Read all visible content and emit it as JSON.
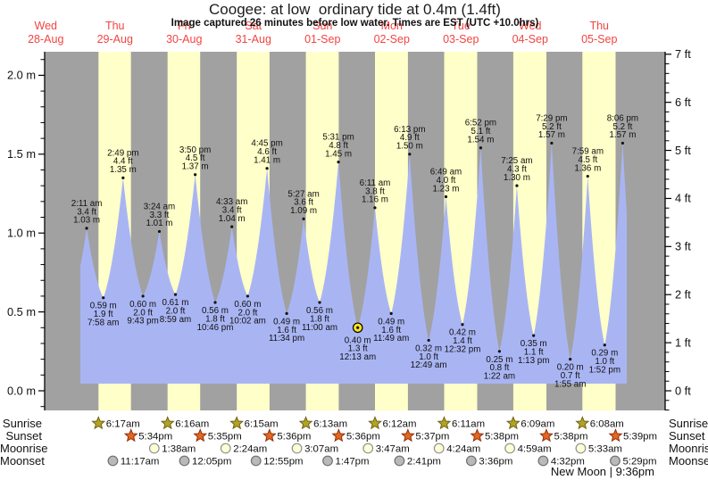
{
  "header": {
    "title": "Coogee: at low  ordinary tide at 0.4m (1.4ft)",
    "subtitle": "Image captured 26 minutes before low water. Times are EST (UTC +10.0hrs)"
  },
  "chart_data": {
    "type": "area",
    "title": "Coogee: at low  ordinary tide at 0.4m (1.4ft)",
    "ylim_m": [
      0.0,
      2.0
    ],
    "ylim_ft": [
      0,
      7
    ],
    "grid": false,
    "days": [
      {
        "name": "Wed",
        "date": "28-Aug"
      },
      {
        "name": "Thu",
        "date": "29-Aug"
      },
      {
        "name": "Fri",
        "date": "30-Aug"
      },
      {
        "name": "Sat",
        "date": "31-Aug"
      },
      {
        "name": "Sun",
        "date": "01-Sep"
      },
      {
        "name": "Mon",
        "date": "02-Sep"
      },
      {
        "name": "Tue",
        "date": "03-Sep"
      },
      {
        "name": "Wed",
        "date": "04-Sep"
      },
      {
        "name": "Thu",
        "date": "05-Sep"
      }
    ],
    "y_axis_left": {
      "unit": "m",
      "values": [
        2.0,
        1.5,
        1.0,
        0.5,
        0.0
      ],
      "labels": [
        "2.0 m",
        "1.5 m",
        "1.0 m",
        "0.5 m",
        "0.0 m"
      ]
    },
    "y_axis_right": {
      "unit": "ft",
      "values": [
        7,
        6,
        5,
        4,
        3,
        2,
        1,
        0
      ],
      "labels": [
        "7 ft",
        "6 ft",
        "5 ft",
        "4 ft",
        "3 ft",
        "2 ft",
        "1 ft",
        "0 ft"
      ]
    },
    "tide_events": [
      {
        "day": 1,
        "type": "high",
        "time": "2:11 am",
        "ft": "3.4 ft",
        "m": "1.03 m"
      },
      {
        "day": 1,
        "type": "low",
        "time": "7:58 am",
        "ft": "1.9 ft",
        "m": "0.59 m"
      },
      {
        "day": 1,
        "type": "high",
        "time": "2:49 pm",
        "ft": "4.4 ft",
        "m": "1.35 m"
      },
      {
        "day": 1,
        "type": "low",
        "time": "9:43 pm",
        "ft": "2.0 ft",
        "m": "0.60 m"
      },
      {
        "day": 2,
        "type": "high",
        "time": "3:24 am",
        "ft": "3.3 ft",
        "m": "1.01 m"
      },
      {
        "day": 2,
        "type": "low",
        "time": "8:59 am",
        "ft": "2.0 ft",
        "m": "0.61 m"
      },
      {
        "day": 2,
        "type": "high",
        "time": "3:50 pm",
        "ft": "4.5 ft",
        "m": "1.37 m"
      },
      {
        "day": 2,
        "type": "low",
        "time": "10:46 pm",
        "ft": "1.8 ft",
        "m": "0.56 m"
      },
      {
        "day": 3,
        "type": "high",
        "time": "4:33 am",
        "ft": "3.4 ft",
        "m": "1.04 m"
      },
      {
        "day": 3,
        "type": "low",
        "time": "10:02 am",
        "ft": "2.0 ft",
        "m": "0.60 m"
      },
      {
        "day": 3,
        "type": "high",
        "time": "4:45 pm",
        "ft": "4.6 ft",
        "m": "1.41 m"
      },
      {
        "day": 3,
        "type": "low",
        "time": "11:34 pm",
        "ft": "1.6 ft",
        "m": "0.49 m"
      },
      {
        "day": 4,
        "type": "high",
        "time": "5:27 am",
        "ft": "3.6 ft",
        "m": "1.09 m"
      },
      {
        "day": 4,
        "type": "low",
        "time": "11:00 am",
        "ft": "1.8 ft",
        "m": "0.56 m"
      },
      {
        "day": 4,
        "type": "high",
        "time": "5:31 pm",
        "ft": "4.8 ft",
        "m": "1.45 m"
      },
      {
        "day": 5,
        "type": "low",
        "time": "12:13 am",
        "ft": "1.3 ft",
        "m": "0.40 m",
        "current": true
      },
      {
        "day": 5,
        "type": "high",
        "time": "6:11 am",
        "ft": "3.8 ft",
        "m": "1.16 m"
      },
      {
        "day": 5,
        "type": "low",
        "time": "11:49 am",
        "ft": "1.6 ft",
        "m": "0.49 m"
      },
      {
        "day": 5,
        "type": "high",
        "time": "6:13 pm",
        "ft": "4.9 ft",
        "m": "1.50 m"
      },
      {
        "day": 6,
        "type": "low",
        "time": "12:49 am",
        "ft": "1.0 ft",
        "m": "0.32 m"
      },
      {
        "day": 6,
        "type": "high",
        "time": "6:49 am",
        "ft": "4.0 ft",
        "m": "1.23 m"
      },
      {
        "day": 6,
        "type": "low",
        "time": "12:32 pm",
        "ft": "1.4 ft",
        "m": "0.42 m"
      },
      {
        "day": 6,
        "type": "high",
        "time": "6:52 pm",
        "ft": "5.1 ft",
        "m": "1.54 m"
      },
      {
        "day": 7,
        "type": "low",
        "time": "1:22 am",
        "ft": "0.8 ft",
        "m": "0.25 m"
      },
      {
        "day": 7,
        "type": "high",
        "time": "7:25 am",
        "ft": "4.3 ft",
        "m": "1.30 m"
      },
      {
        "day": 7,
        "type": "low",
        "time": "1:13 pm",
        "ft": "1.1 ft",
        "m": "0.35 m"
      },
      {
        "day": 7,
        "type": "high",
        "time": "7:29 pm",
        "ft": "5.2 ft",
        "m": "1.57 m"
      },
      {
        "day": 8,
        "type": "low",
        "time": "1:55 am",
        "ft": "0.7 ft",
        "m": "0.20 m"
      },
      {
        "day": 8,
        "type": "high",
        "time": "7:59 am",
        "ft": "4.5 ft",
        "m": "1.36 m"
      },
      {
        "day": 8,
        "type": "low",
        "time": "1:52 pm",
        "ft": "1.0 ft",
        "m": "0.29 m"
      },
      {
        "day": 8,
        "type": "high",
        "time": "8:06 pm",
        "ft": "5.2 ft",
        "m": "1.57 m"
      }
    ],
    "sun_moon": {
      "rows": [
        {
          "label": "Sunrise",
          "marker": "sunrise-star",
          "events": [
            {
              "day": 1,
              "time": "6:17am"
            },
            {
              "day": 2,
              "time": "6:16am"
            },
            {
              "day": 3,
              "time": "6:15am"
            },
            {
              "day": 4,
              "time": "6:13am"
            },
            {
              "day": 5,
              "time": "6:12am"
            },
            {
              "day": 6,
              "time": "6:11am"
            },
            {
              "day": 7,
              "time": "6:09am"
            },
            {
              "day": 8,
              "time": "6:08am"
            }
          ]
        },
        {
          "label": "Sunset",
          "marker": "sunset-star",
          "events": [
            {
              "day": 1,
              "time": "5:34pm"
            },
            {
              "day": 2,
              "time": "5:35pm"
            },
            {
              "day": 3,
              "time": "5:36pm"
            },
            {
              "day": 4,
              "time": "5:36pm"
            },
            {
              "day": 5,
              "time": "5:37pm"
            },
            {
              "day": 6,
              "time": "5:38pm"
            },
            {
              "day": 7,
              "time": "5:38pm"
            },
            {
              "day": 8,
              "time": "5:39pm"
            }
          ]
        },
        {
          "label": "Moonrise",
          "marker": "moonrise-circle",
          "events": [
            {
              "day": 2,
              "time": "1:38am"
            },
            {
              "day": 3,
              "time": "2:24am"
            },
            {
              "day": 4,
              "time": "3:07am"
            },
            {
              "day": 5,
              "time": "3:47am"
            },
            {
              "day": 6,
              "time": "4:24am"
            },
            {
              "day": 7,
              "time": "4:59am"
            },
            {
              "day": 8,
              "time": "5:33am"
            }
          ]
        },
        {
          "label": "Moonset",
          "marker": "moonset-circle",
          "events": [
            {
              "day": 1,
              "time": "11:17am"
            },
            {
              "day": 2,
              "time": "12:05pm"
            },
            {
              "day": 3,
              "time": "12:55pm"
            },
            {
              "day": 4,
              "time": "1:47pm"
            },
            {
              "day": 5,
              "time": "2:41pm"
            },
            {
              "day": 6,
              "time": "3:36pm"
            },
            {
              "day": 7,
              "time": "4:32pm"
            },
            {
              "day": 8,
              "time": "5:29pm"
            }
          ]
        }
      ]
    },
    "footnote": "New Moon | 9:36pm"
  },
  "colors": {
    "day_band": "#ffffc9",
    "night_band": "#a1a1a1",
    "tide_fill": "#a9b5f3",
    "day_label_red": "#f24440",
    "sunrise_star_fill": "#b3a31e",
    "sunrise_star_stroke": "#6e631a",
    "sunset_star_fill": "#e7661b",
    "sunset_star_stroke": "#8f2f10",
    "moonrise_fill": "#ffffd6",
    "moonrise_stroke": "#8f8f8f",
    "moonset_fill": "#b9b9b9",
    "moonset_stroke": "#6f6f6f",
    "current_marker": "#ffe41c"
  }
}
